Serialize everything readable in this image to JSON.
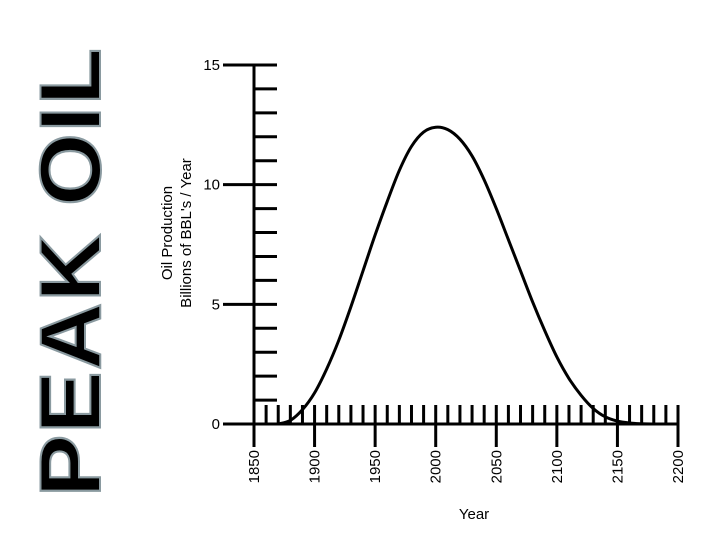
{
  "slide": {
    "side_title": "PEAK OIL",
    "title_fill": "#b9e9ee",
    "title_stroke": "#8a9aa0"
  },
  "chart_data": {
    "type": "line",
    "title": "",
    "xlabel": "Year",
    "ylabel_lines": [
      "Oil Production",
      "Billions of BBL's / Year"
    ],
    "xlim": [
      1850,
      2200
    ],
    "ylim": [
      0,
      15
    ],
    "x_ticks": [
      1850,
      1900,
      1950,
      2000,
      2050,
      2100,
      2150,
      2200
    ],
    "y_ticks": [
      0,
      5,
      10,
      15
    ],
    "x_minor_step": 10,
    "y_minor_step": 1,
    "grid": false,
    "legend": "none",
    "series": [
      {
        "color": "#000000",
        "x": [
          1870,
          1880,
          1890,
          1900,
          1910,
          1920,
          1930,
          1940,
          1950,
          1960,
          1970,
          1980,
          1990,
          2000,
          2010,
          2020,
          2030,
          2040,
          2050,
          2060,
          2070,
          2080,
          2090,
          2100,
          2110,
          2120,
          2130,
          2140,
          2150,
          2160,
          2170,
          2180
        ],
        "y": [
          0.0,
          0.15,
          0.6,
          1.3,
          2.3,
          3.5,
          4.9,
          6.4,
          7.9,
          9.3,
          10.6,
          11.6,
          12.2,
          12.4,
          12.3,
          11.9,
          11.2,
          10.2,
          9.0,
          7.7,
          6.4,
          5.1,
          3.9,
          2.8,
          1.9,
          1.2,
          0.65,
          0.3,
          0.12,
          0.04,
          0.01,
          0.0
        ]
      }
    ]
  }
}
